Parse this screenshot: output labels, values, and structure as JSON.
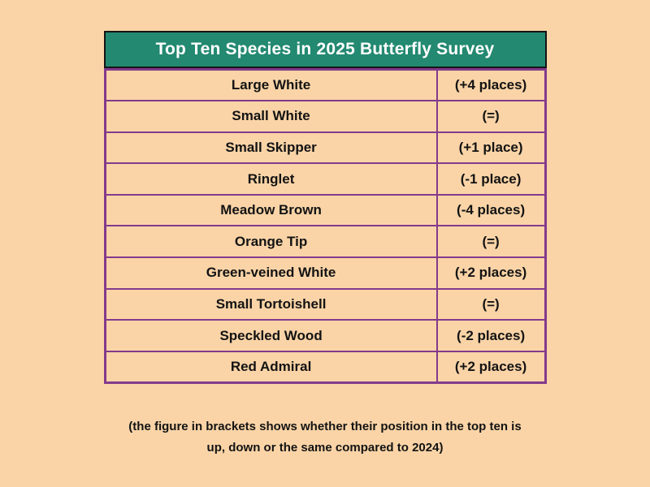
{
  "theme": {
    "background": "#FAD4A7",
    "header_background": "#238971",
    "header_text": "#FFFFFF",
    "table_border": "#833A8C",
    "header_border": "#141414",
    "text": "#131313"
  },
  "chart_data": {
    "type": "table",
    "title": "Top Ten Species in 2025 Butterfly Survey",
    "rows": [
      [
        "Large White",
        "(+4 places)"
      ],
      [
        "Small White",
        "(=)"
      ],
      [
        "Small Skipper",
        "(+1 place)"
      ],
      [
        "Ringlet",
        "(-1 place)"
      ],
      [
        "Meadow Brown",
        "(-4 places)"
      ],
      [
        "Orange Tip",
        "(=)"
      ],
      [
        "Green-veined White",
        "(+2 places)"
      ],
      [
        "Small Tortoishell",
        "(=)"
      ],
      [
        "Speckled Wood",
        "(-2 places)"
      ],
      [
        "Red Admiral",
        "(+2 places)"
      ]
    ],
    "footnote_lines": [
      "(the figure in brackets shows whether their position in the top ten is",
      "up, down or the same compared to 2024)"
    ],
    "layout": {
      "legend": "none",
      "grid": "table borders",
      "header_position": "top"
    }
  }
}
